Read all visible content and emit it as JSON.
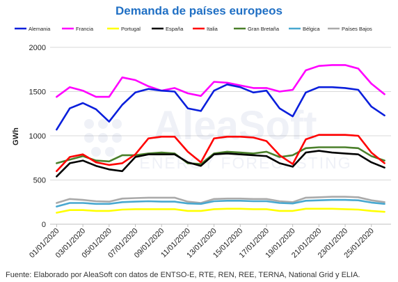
{
  "title": "Demanda de países europeos",
  "source": "Fuente: Elaborado por AleaSoft con datos de ENTSO-E, RTE, REN, REE, TERNA, National Grid y ELIA.",
  "watermark": {
    "name": "AleaSoft",
    "tagline": "ENERGY FORECASTING"
  },
  "chart_data": {
    "type": "line",
    "title": "Demanda de países europeos",
    "ylabel": "GWh",
    "xlabel": "",
    "ylim": [
      0,
      2000
    ],
    "yticks": [
      0,
      500,
      1000,
      1500,
      2000
    ],
    "grid": true,
    "legend_position": "top",
    "x": [
      "01/01/2020",
      "02/01/2020",
      "03/01/2020",
      "04/01/2020",
      "05/01/2020",
      "06/01/2020",
      "07/01/2020",
      "08/01/2020",
      "09/01/2020",
      "10/01/2020",
      "11/01/2020",
      "12/01/2020",
      "13/01/2020",
      "14/01/2020",
      "15/01/2020",
      "16/01/2020",
      "17/01/2020",
      "18/01/2020",
      "19/01/2020",
      "20/01/2020",
      "21/01/2020",
      "22/01/2020",
      "23/01/2020",
      "24/01/2020",
      "25/01/2020",
      "26/01/2020"
    ],
    "xtick_labels": [
      "01/01/2020",
      "03/01/2020",
      "05/01/2020",
      "07/01/2020",
      "09/01/2020",
      "11/01/2020",
      "13/01/2020",
      "15/01/2020",
      "17/01/2020",
      "19/01/2020",
      "21/01/2020",
      "23/01/2020",
      "25/01/2020"
    ],
    "series": [
      {
        "name": "Alemania",
        "color": "#0a1fdc",
        "values": [
          1070,
          1310,
          1370,
          1300,
          1160,
          1350,
          1490,
          1530,
          1510,
          1500,
          1310,
          1280,
          1510,
          1580,
          1550,
          1490,
          1510,
          1310,
          1220,
          1490,
          1550,
          1550,
          1540,
          1520,
          1330,
          1230
        ]
      },
      {
        "name": "Francia",
        "color": "#ff00ff",
        "values": [
          1440,
          1550,
          1510,
          1440,
          1440,
          1660,
          1630,
          1560,
          1510,
          1540,
          1480,
          1450,
          1610,
          1600,
          1570,
          1540,
          1540,
          1500,
          1520,
          1740,
          1790,
          1800,
          1800,
          1760,
          1590,
          1470
        ]
      },
      {
        "name": "Portugal",
        "color": "#ffff00",
        "values": [
          130,
          160,
          160,
          150,
          150,
          165,
          170,
          170,
          170,
          170,
          150,
          150,
          170,
          175,
          175,
          170,
          170,
          150,
          150,
          175,
          175,
          175,
          170,
          165,
          150,
          140
        ]
      },
      {
        "name": "España",
        "color": "#000000",
        "values": [
          540,
          690,
          720,
          660,
          620,
          600,
          760,
          790,
          790,
          790,
          700,
          660,
          790,
          800,
          790,
          780,
          770,
          690,
          650,
          810,
          830,
          810,
          800,
          790,
          700,
          640
        ]
      },
      {
        "name": "Italia",
        "color": "#ff0000",
        "values": [
          600,
          760,
          790,
          700,
          670,
          690,
          790,
          970,
          990,
          990,
          820,
          700,
          970,
          990,
          990,
          980,
          940,
          780,
          680,
          960,
          1010,
          1010,
          1010,
          1000,
          810,
          690
        ]
      },
      {
        "name": "Gran Bretaña",
        "color": "#4a7f2a",
        "values": [
          690,
          730,
          770,
          720,
          710,
          780,
          780,
          800,
          810,
          800,
          690,
          680,
          800,
          820,
          810,
          800,
          820,
          760,
          780,
          860,
          870,
          870,
          870,
          860,
          770,
          720
        ]
      },
      {
        "name": "Bélgica",
        "color": "#48a8d0",
        "values": [
          200,
          240,
          240,
          230,
          230,
          250,
          255,
          260,
          255,
          255,
          235,
          230,
          260,
          265,
          265,
          260,
          260,
          240,
          235,
          265,
          270,
          275,
          275,
          270,
          245,
          230
        ]
      },
      {
        "name": "Países Bajos",
        "color": "#aaaaaa",
        "values": [
          240,
          285,
          275,
          260,
          255,
          290,
          295,
          300,
          300,
          300,
          255,
          240,
          285,
          290,
          290,
          285,
          285,
          260,
          250,
          300,
          305,
          310,
          310,
          305,
          270,
          250
        ]
      }
    ]
  }
}
